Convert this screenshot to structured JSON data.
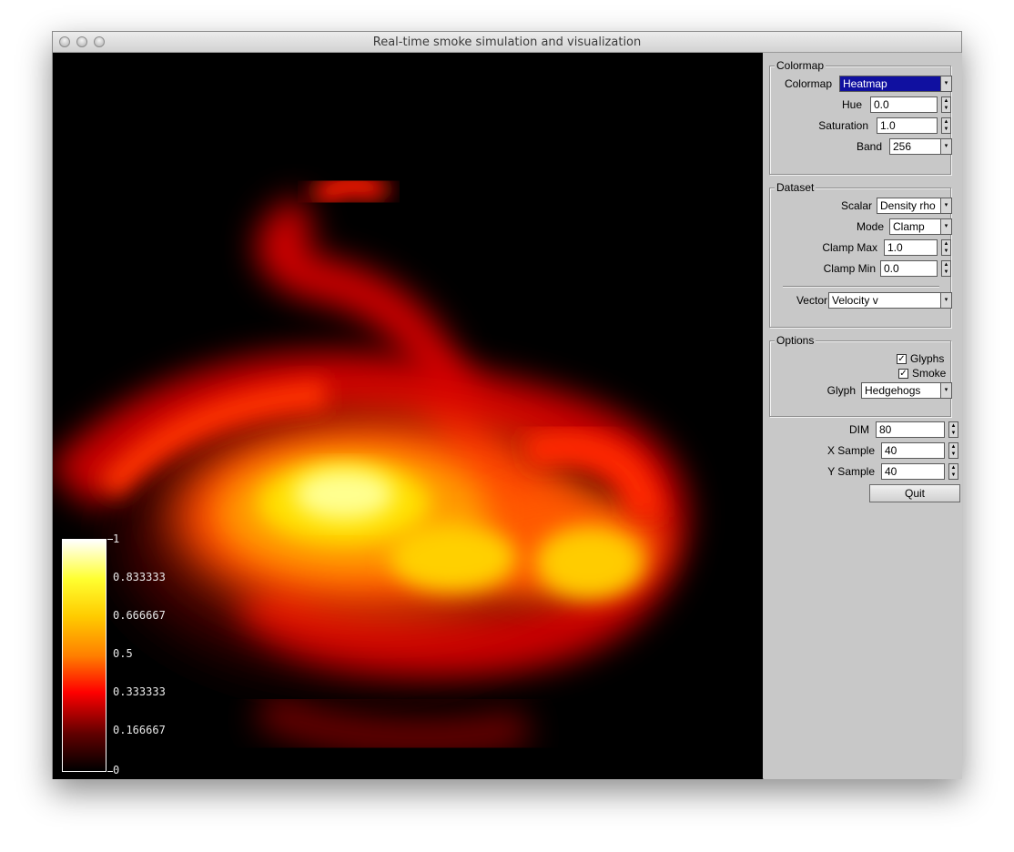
{
  "window": {
    "title": "Real-time smoke simulation and visualization"
  },
  "legend": {
    "labels": [
      "1",
      "0.833333",
      "0.666667",
      "0.5",
      "0.333333",
      "0.166667",
      "0"
    ]
  },
  "colormap_group": {
    "title": "Colormap",
    "colormap_label": "Colormap",
    "colormap_value": "Heatmap",
    "hue_label": "Hue",
    "hue_value": "0.0",
    "saturation_label": "Saturation",
    "saturation_value": "1.0",
    "band_label": "Band",
    "band_value": "256"
  },
  "dataset_group": {
    "title": "Dataset",
    "scalar_label": "Scalar",
    "scalar_value": "Density rho",
    "mode_label": "Mode",
    "mode_value": "Clamp",
    "clamp_max_label": "Clamp Max",
    "clamp_max_value": "1.0",
    "clamp_min_label": "Clamp Min",
    "clamp_min_value": "0.0",
    "vector_label": "Vector",
    "vector_value": "Velocity v"
  },
  "options_group": {
    "title": "Options",
    "glyphs_label": "Glyphs",
    "glyphs_checked": true,
    "smoke_label": "Smoke",
    "smoke_checked": true,
    "glyph_label": "Glyph",
    "glyph_value": "Hedgehogs"
  },
  "sim": {
    "dim_label": "DIM",
    "dim_value": "80",
    "xsample_label": "X Sample",
    "xsample_value": "40",
    "ysample_label": "Y Sample",
    "ysample_value": "40",
    "quit_label": "Quit"
  },
  "colors": {
    "selection": "#1010a0",
    "panel": "#c8c8c8"
  }
}
